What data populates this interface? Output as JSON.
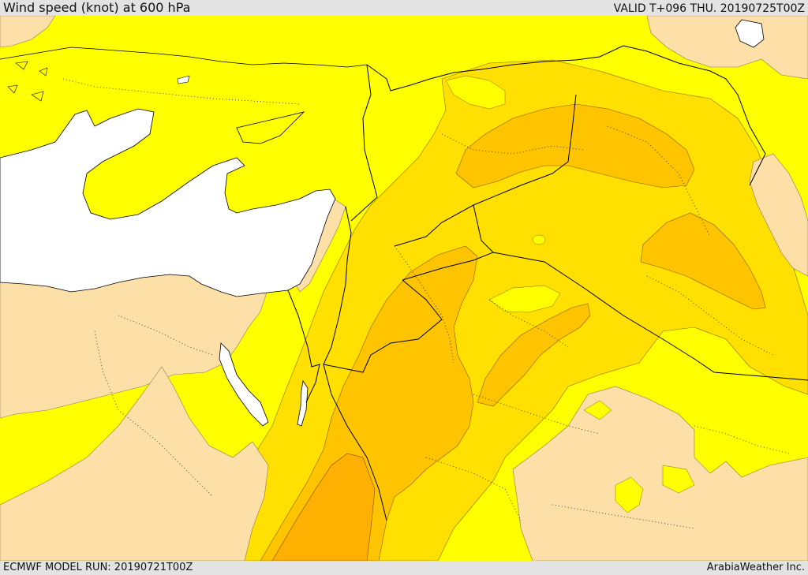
{
  "header": {
    "title": "Wind speed (knot) at 600 hPa",
    "valid": "VALID T+096 THU. 20190725T00Z"
  },
  "footer": {
    "model_run": "ECMWF MODEL RUN: 20190721T00Z",
    "credit": "ArabiaWeather Inc."
  },
  "map": {
    "colors": {
      "band_0_10": "#fde0a8",
      "band_10_20": "#ffff00",
      "band_20_25": "#ffe000",
      "band_25_30": "#ffc400",
      "band_30_35": "#ffb000",
      "sea": "#ffffff",
      "border": "#000000"
    }
  }
}
